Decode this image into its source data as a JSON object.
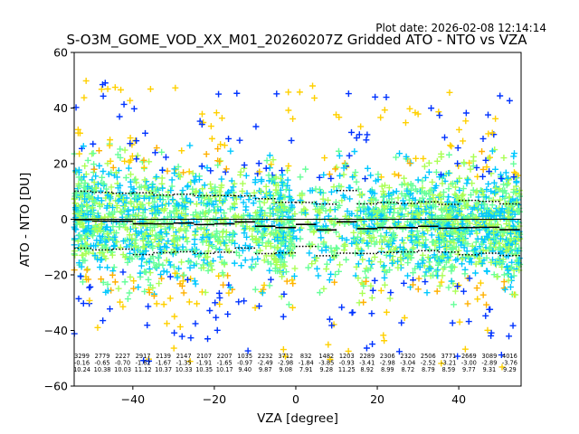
{
  "chart_data": {
    "type": "scatter",
    "plot_date_label": "Plot date: 2026-02-08 12:14:14",
    "title": "S-O3M_GOME_VOD_XX_M01_20260207Z Gridded ATO - NTO vs VZA",
    "xlabel": "VZA [degree]",
    "ylabel": "ATO - NTO [DU]",
    "xlim": [
      -54.4,
      55.3
    ],
    "ylim": [
      -60,
      60
    ],
    "xticks": [
      -40,
      -20,
      0,
      20,
      40
    ],
    "yticks": [
      -60,
      -40,
      -20,
      0,
      20,
      40,
      60
    ],
    "grid": false,
    "zero_line": 0,
    "marker": "+",
    "marker_colors": [
      "#0033ff",
      "#00c8ff",
      "#66ff99",
      "#aaff55",
      "#ffd000",
      "#ffb000"
    ],
    "bin_edges": [
      -55,
      -50,
      -45,
      -40,
      -35,
      -30,
      -25,
      -20,
      -15,
      -10,
      -5,
      0,
      5,
      10,
      15,
      20,
      25,
      30,
      35,
      40,
      45,
      50,
      55
    ],
    "bins": {
      "counts": [
        3299,
        2779,
        2227,
        2917,
        2139,
        2147,
        2107,
        2207,
        1035,
        2232,
        3712,
        832,
        1482,
        1203,
        2289,
        2306,
        2320,
        2506,
        3771,
        2669,
        3089,
        4016
      ],
      "means": [
        -0.16,
        -0.65,
        -0.7,
        -1.62,
        -1.67,
        -1.35,
        -1.91,
        -1.65,
        -0.97,
        -2.49,
        -2.98,
        -1.84,
        -3.85,
        -0.93,
        -3.41,
        -2.98,
        -3.04,
        -2.52,
        -3.21,
        -3.0,
        -2.89,
        -3.76
      ],
      "stds": [
        10.24,
        10.38,
        10.03,
        11.12,
        10.37,
        10.33,
        10.35,
        10.17,
        9.4,
        9.87,
        9.08,
        7.91,
        9.28,
        11.25,
        8.92,
        8.99,
        8.72,
        8.79,
        8.59,
        9.77,
        9.31,
        9.29
      ]
    }
  }
}
